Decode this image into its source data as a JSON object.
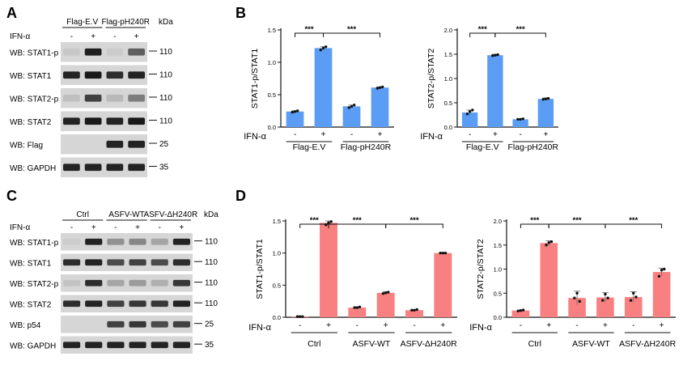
{
  "panel_letters": {
    "a": "A",
    "b": "B",
    "c": "C",
    "d": "D"
  },
  "blot_A": {
    "groups": [
      "Flag-E.V",
      "Flag-pH240R"
    ],
    "ifn_label": "IFN-α",
    "signs": [
      "-",
      "+",
      "-",
      "+"
    ],
    "kda_label": "kDa",
    "rows": [
      {
        "label": "WB: STAT1-p",
        "marker": "110",
        "bands": [
          0.08,
          0.92,
          0.06,
          0.6
        ]
      },
      {
        "label": "WB: STAT1",
        "marker": "110",
        "bands": [
          0.9,
          0.95,
          0.85,
          0.9
        ]
      },
      {
        "label": "WB: STAT2-p",
        "marker": "110",
        "bands": [
          0.12,
          0.75,
          0.15,
          0.45
        ]
      },
      {
        "label": "WB: STAT2",
        "marker": "110",
        "bands": [
          0.9,
          0.95,
          0.9,
          0.95
        ]
      },
      {
        "label": "WB: Flag",
        "marker": "25",
        "bands": [
          0.0,
          0.0,
          0.9,
          0.9
        ]
      },
      {
        "label": "WB: GAPDH",
        "marker": "35",
        "bands": [
          0.9,
          0.9,
          0.9,
          0.9
        ]
      }
    ]
  },
  "blot_C": {
    "groups": [
      "Ctrl",
      "ASFV-WT",
      "ASFV-ΔH240R"
    ],
    "ifn_label": "IFN-α",
    "signs": [
      "-",
      "+",
      "-",
      "+",
      "-",
      "+"
    ],
    "kda_label": "kDa",
    "rows": [
      {
        "label": "WB: STAT1-p",
        "marker": "110",
        "bands": [
          0.05,
          0.9,
          0.35,
          0.4,
          0.25,
          0.9
        ]
      },
      {
        "label": "WB: STAT1",
        "marker": "110",
        "bands": [
          0.85,
          0.9,
          0.7,
          0.75,
          0.7,
          0.85
        ]
      },
      {
        "label": "WB: STAT2-p",
        "marker": "110",
        "bands": [
          0.1,
          0.85,
          0.25,
          0.3,
          0.2,
          0.8
        ]
      },
      {
        "label": "WB: STAT2",
        "marker": "110",
        "bands": [
          0.85,
          0.9,
          0.75,
          0.8,
          0.8,
          0.9
        ]
      },
      {
        "label": "WB: p54",
        "marker": "25",
        "bands": [
          0.0,
          0.0,
          0.75,
          0.8,
          0.7,
          0.75
        ]
      },
      {
        "label": "WB: GAPDH",
        "marker": "35",
        "bands": [
          0.9,
          0.9,
          0.9,
          0.9,
          0.9,
          0.9
        ]
      }
    ]
  },
  "colors": {
    "blue_bar": "#5b9df5",
    "red_bar": "#f88080",
    "axis": "#111111"
  },
  "chart_data": [
    {
      "type": "bar",
      "panel": "B-left",
      "ylabel": "STAT1-p/STAT1",
      "ylim": [
        0,
        1.5
      ],
      "yticks": [
        "0.0",
        "0.5",
        "1.0",
        "1.5"
      ],
      "ifn_label": "IFN-α",
      "signs": [
        "-",
        "+",
        "-",
        "+"
      ],
      "groups": [
        "Flag-E.V",
        "Flag-pH240R"
      ],
      "values": [
        0.24,
        1.22,
        0.32,
        0.61
      ],
      "errors": [
        0.01,
        0.02,
        0.02,
        0.01
      ],
      "points": [
        [
          0.23,
          0.24,
          0.25
        ],
        [
          1.19,
          1.22,
          1.24
        ],
        [
          0.3,
          0.32,
          0.34
        ],
        [
          0.6,
          0.61,
          0.62
        ]
      ],
      "significance": [
        {
          "from": 0,
          "to": 1,
          "label": "***"
        },
        {
          "from": 1,
          "to": 3,
          "label": "***"
        }
      ],
      "color": "blue"
    },
    {
      "type": "bar",
      "panel": "B-right",
      "ylabel": "STAT2-p/STAT2",
      "ylim": [
        0,
        2.0
      ],
      "yticks": [
        "0.0",
        "0.5",
        "1.0",
        "1.5",
        "2.0"
      ],
      "ifn_label": "IFN-α",
      "signs": [
        "-",
        "+",
        "-",
        "+"
      ],
      "groups": [
        "Flag-E.V",
        "Flag-pH240R"
      ],
      "values": [
        0.3,
        1.48,
        0.16,
        0.58
      ],
      "errors": [
        0.05,
        0.02,
        0.01,
        0.02
      ],
      "points": [
        [
          0.27,
          0.32,
          0.35
        ],
        [
          1.47,
          1.48,
          1.49
        ],
        [
          0.16,
          0.16,
          0.17
        ],
        [
          0.57,
          0.58,
          0.59
        ]
      ],
      "significance": [
        {
          "from": 0,
          "to": 1,
          "label": "***"
        },
        {
          "from": 1,
          "to": 3,
          "label": "***"
        }
      ],
      "color": "blue"
    },
    {
      "type": "bar",
      "panel": "D-left",
      "ylabel": "STAT1-p/STAT1",
      "ylim": [
        0,
        1.5
      ],
      "yticks": [
        "0.0",
        "0.5",
        "1.0",
        "1.5"
      ],
      "ifn_label": "IFN-α",
      "signs": [
        "-",
        "+",
        "-",
        "+",
        "-",
        "+"
      ],
      "groups": [
        "Ctrl",
        "ASFV-WT",
        "ASFV-ΔH240R"
      ],
      "values": [
        0.01,
        1.47,
        0.15,
        0.38,
        0.11,
        1.0
      ],
      "errors": [
        0.005,
        0.03,
        0.01,
        0.02,
        0.01,
        0.01
      ],
      "points": [
        [
          0.01,
          0.01,
          0.01
        ],
        [
          1.44,
          1.47,
          1.49
        ],
        [
          0.15,
          0.15,
          0.16
        ],
        [
          0.37,
          0.38,
          0.39
        ],
        [
          0.11,
          0.11,
          0.12
        ],
        [
          1.0,
          1.0,
          1.0
        ]
      ],
      "significance": [
        {
          "from": 0,
          "to": 1,
          "label": "***"
        },
        {
          "from": 1,
          "to": 3,
          "label": "***"
        },
        {
          "from": 3,
          "to": 5,
          "label": "***"
        }
      ],
      "color": "red"
    },
    {
      "type": "bar",
      "panel": "D-right",
      "ylabel": "STAT2-p/STAT2",
      "ylim": [
        0,
        2.0
      ],
      "yticks": [
        "0.0",
        "0.5",
        "1.0",
        "1.5",
        "2.0"
      ],
      "ifn_label": "IFN-α",
      "signs": [
        "-",
        "+",
        "-",
        "+",
        "-",
        "+"
      ],
      "groups": [
        "Ctrl",
        "ASFV-WT",
        "ASFV-ΔH240R"
      ],
      "values": [
        0.14,
        1.54,
        0.4,
        0.41,
        0.42,
        0.94
      ],
      "errors": [
        0.01,
        0.05,
        0.14,
        0.1,
        0.11,
        0.08
      ],
      "points": [
        [
          0.13,
          0.14,
          0.15
        ],
        [
          1.5,
          1.55,
          1.57
        ],
        [
          0.4,
          0.5,
          0.33
        ],
        [
          0.35,
          0.48,
          0.4
        ],
        [
          0.35,
          0.5,
          0.42
        ],
        [
          0.85,
          0.98,
          1.0
        ]
      ],
      "significance": [
        {
          "from": 0,
          "to": 1,
          "label": "***"
        },
        {
          "from": 1,
          "to": 3,
          "label": "***"
        },
        {
          "from": 3,
          "to": 5,
          "label": "***"
        }
      ],
      "color": "red"
    }
  ]
}
